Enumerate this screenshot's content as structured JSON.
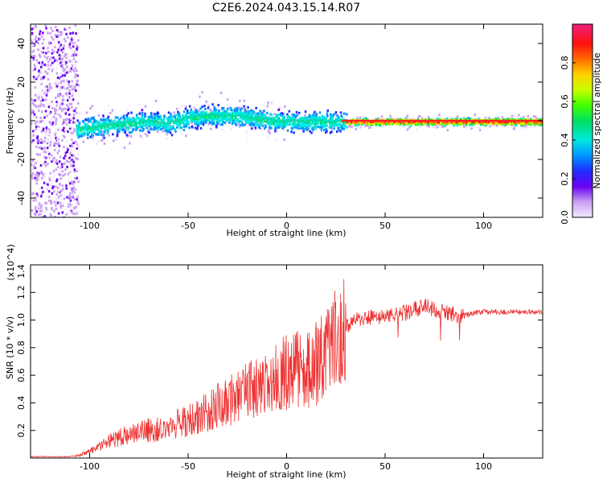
{
  "title": "C2E6.2024.043.15.14.R07",
  "chart_data": [
    {
      "type": "heatmap",
      "xlabel": "Height of straight line (km)",
      "ylabel": "Frequency (Hz)",
      "xlim": [
        -130,
        130
      ],
      "ylim": [
        -50,
        50
      ],
      "xticks": [
        -100,
        -50,
        0,
        50,
        100
      ],
      "yticks": [
        -40,
        -20,
        0,
        20,
        40
      ],
      "colorbar": {
        "label": "Normalized spectral amplitude",
        "range": [
          0,
          1
        ],
        "ticks": [
          "0.0",
          "0.2",
          "0.4",
          "0.6",
          "0.8"
        ]
      },
      "ridge": {
        "x": [
          -108,
          -100,
          -90,
          -80,
          -70,
          -60,
          -50,
          -40,
          -30,
          -20,
          -10,
          0,
          10,
          20,
          30,
          130
        ],
        "y": [
          -4,
          -3,
          -2,
          -1,
          0,
          -1,
          2,
          3,
          3,
          2,
          1,
          0,
          0,
          0,
          0,
          0
        ]
      },
      "grid": false
    },
    {
      "type": "line",
      "xlabel": "Height of straight line (km)",
      "ylabel": "SNR (10 * v/v)",
      "y_multiplier": "(x10^4)",
      "xlim": [
        -130,
        130
      ],
      "ylim": [
        0,
        1.4
      ],
      "xticks": [
        -100,
        -50,
        0,
        50,
        100
      ],
      "yticks": [
        "0.2",
        "0.4",
        "0.6",
        "0.8",
        "1.0",
        "1.2",
        "1.4"
      ],
      "series": [
        {
          "color": "#ee3333",
          "x": [
            -130,
            -120,
            -110,
            -105,
            -100,
            -95,
            -90,
            -85,
            -80,
            -75,
            -70,
            -65,
            -60,
            -55,
            -50,
            -45,
            -40,
            -35,
            -30,
            -25,
            -20,
            -15,
            -10,
            -5,
            0,
            5,
            10,
            15,
            20,
            25,
            30,
            35,
            40,
            45,
            50,
            55,
            60,
            65,
            70,
            75,
            80,
            85,
            90,
            95,
            100,
            110,
            120,
            130
          ],
          "values": [
            0.01,
            0.01,
            0.01,
            0.02,
            0.05,
            0.08,
            0.12,
            0.15,
            0.17,
            0.19,
            0.2,
            0.21,
            0.22,
            0.25,
            0.27,
            0.3,
            0.33,
            0.38,
            0.4,
            0.45,
            0.5,
            0.5,
            0.52,
            0.58,
            0.62,
            0.64,
            0.62,
            0.68,
            0.75,
            0.85,
            0.95,
            1.0,
            1.02,
            1.02,
            1.02,
            1.03,
            1.05,
            1.08,
            1.1,
            1.08,
            1.05,
            1.04,
            1.03,
            1.05,
            1.06,
            1.06,
            1.06,
            1.06
          ]
        }
      ],
      "grid": false
    }
  ]
}
